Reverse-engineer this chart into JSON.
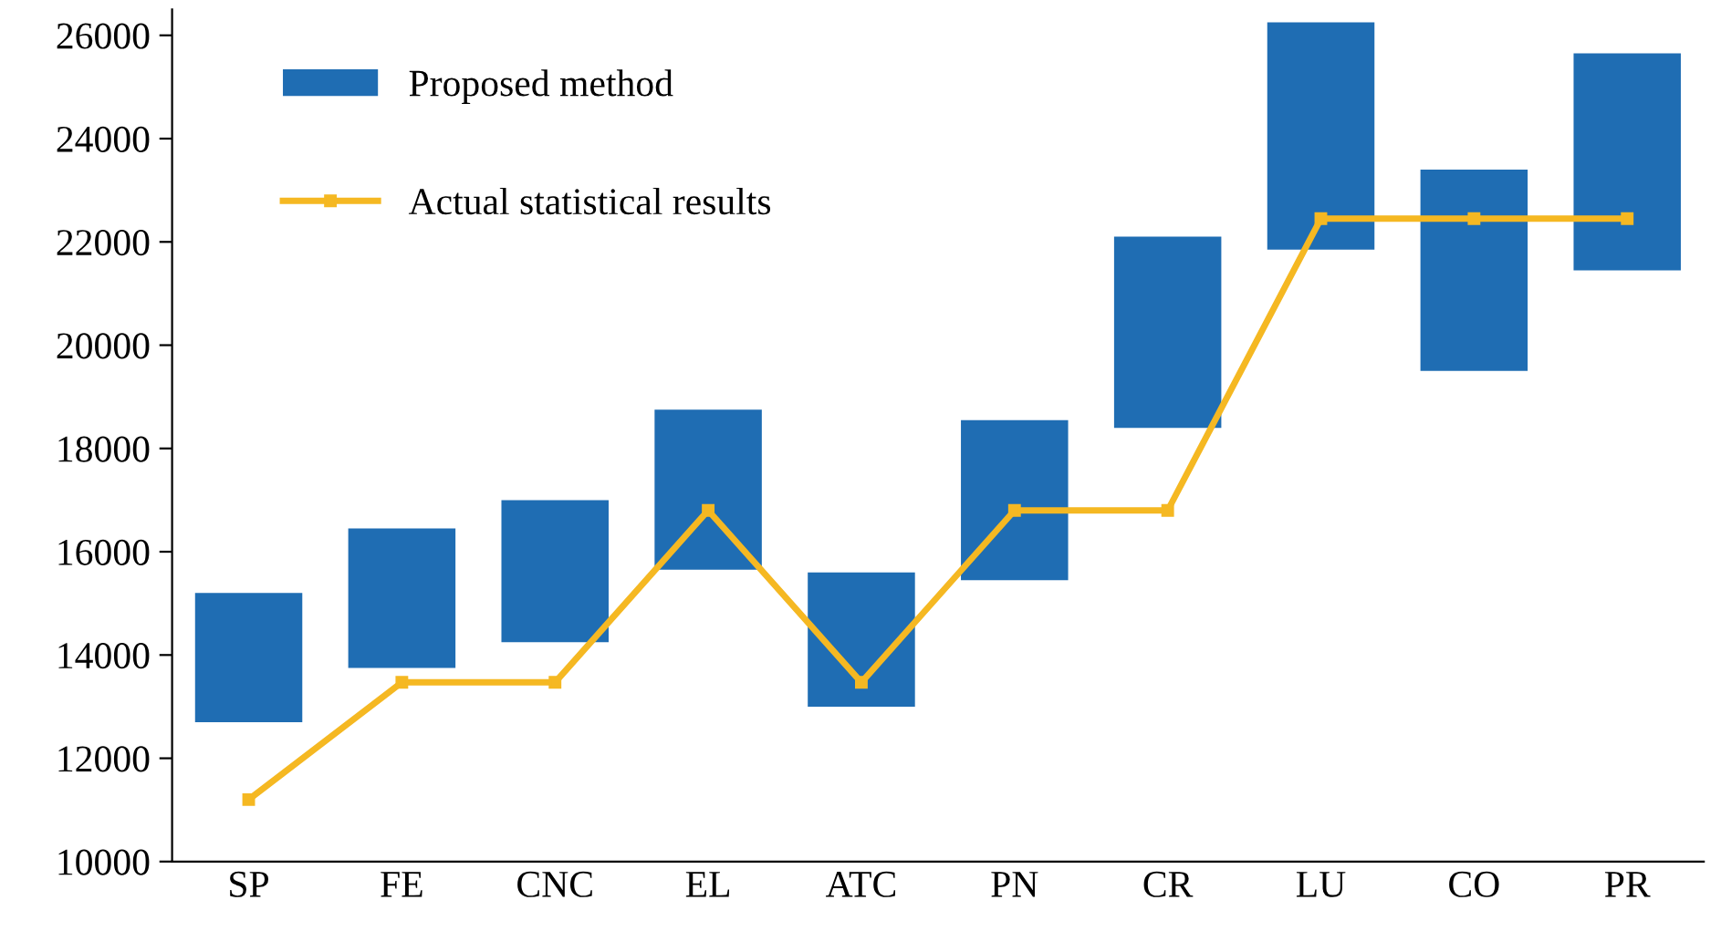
{
  "chart_data": {
    "type": "bar",
    "categories": [
      "SP",
      "FE",
      "CNC",
      "EL",
      "ATC",
      "PN",
      "CR",
      "LU",
      "CO",
      "PR"
    ],
    "series": [
      {
        "name": "Proposed method",
        "color": "#1f6db3",
        "base": [
          12700,
          13750,
          14250,
          15650,
          13000,
          15450,
          18400,
          21850,
          19500,
          21450
        ],
        "values": [
          2500,
          2700,
          2750,
          3100,
          2600,
          3100,
          3700,
          4400,
          3900,
          4200
        ]
      },
      {
        "name": "Actual statistical results",
        "type": "line",
        "color": "#f5b822",
        "marker": "square",
        "line_style": "solid",
        "values": [
          11200,
          13470,
          13470,
          16800,
          13470,
          16800,
          16800,
          22450,
          22450,
          22450
        ]
      }
    ],
    "ylim": [
      10000,
      26500
    ],
    "yticks": [
      10000,
      12000,
      14000,
      16000,
      18000,
      20000,
      22000,
      24000,
      26000
    ],
    "grid": false,
    "legend": "top left"
  }
}
